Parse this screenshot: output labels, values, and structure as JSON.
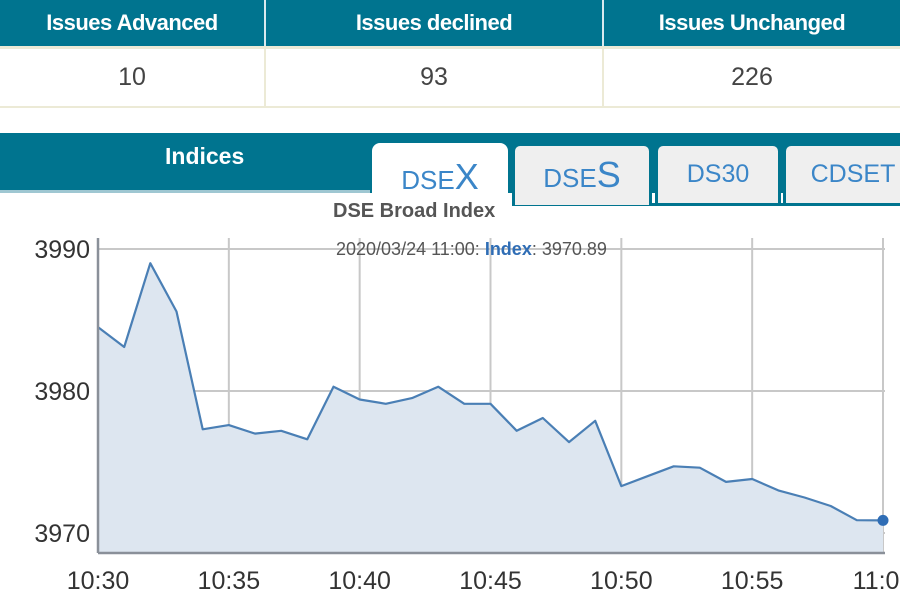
{
  "stats": {
    "headers": [
      "Issues Advanced",
      "Issues declined",
      "Issues Unchanged"
    ],
    "values": [
      "10",
      "93",
      "226"
    ]
  },
  "indices": {
    "title": "Indices",
    "tabs": [
      {
        "prefix": "DSE",
        "suffix": "X",
        "label": "DSEX",
        "active": true
      },
      {
        "prefix": "DSE",
        "suffix": "S",
        "label": "DSES",
        "active": false
      },
      {
        "label": "DS30",
        "active": false
      },
      {
        "label": "CDSET",
        "active": false
      }
    ]
  },
  "tooltip": {
    "time": "2020/03/24 11:00: ",
    "series": "Index",
    "sep": ": ",
    "value": "3970.89"
  },
  "colors": {
    "header_bg": "#00748f",
    "line": "#4a7fb5",
    "area": "#dde6f0",
    "tab_text": "#3b86c8"
  },
  "chart_data": {
    "type": "area",
    "title": "DSE Broad Index",
    "xlabel": "",
    "ylabel": "",
    "x": [
      "10:30",
      "10:31",
      "10:32",
      "10:33",
      "10:34",
      "10:35",
      "10:36",
      "10:37",
      "10:38",
      "10:39",
      "10:40",
      "10:41",
      "10:42",
      "10:43",
      "10:44",
      "10:45",
      "10:46",
      "10:47",
      "10:48",
      "10:49",
      "10:50",
      "10:51",
      "10:52",
      "10:53",
      "10:54",
      "10:55",
      "10:56",
      "10:57",
      "10:58",
      "10:59",
      "11:00"
    ],
    "series": [
      {
        "name": "Index",
        "values": [
          3984.5,
          3983.1,
          3989.0,
          3985.6,
          3977.3,
          3977.6,
          3977.0,
          3977.2,
          3976.6,
          3980.3,
          3979.4,
          3979.1,
          3979.5,
          3980.3,
          3979.1,
          3979.1,
          3977.2,
          3978.1,
          3976.4,
          3977.9,
          3973.3,
          3974.0,
          3974.7,
          3974.6,
          3973.6,
          3973.8,
          3973.0,
          3972.5,
          3971.9,
          3970.9,
          3970.89
        ]
      }
    ],
    "x_ticks": [
      "10:30",
      "10:35",
      "10:40",
      "10:45",
      "10:50",
      "10:55",
      "11:00"
    ],
    "y_ticks": [
      3970,
      3980,
      3990
    ],
    "ylim": [
      3968.5,
      3990.8
    ],
    "grid": true,
    "legend": "none",
    "highlight_point": {
      "x": "11:00",
      "value": 3970.89
    }
  }
}
